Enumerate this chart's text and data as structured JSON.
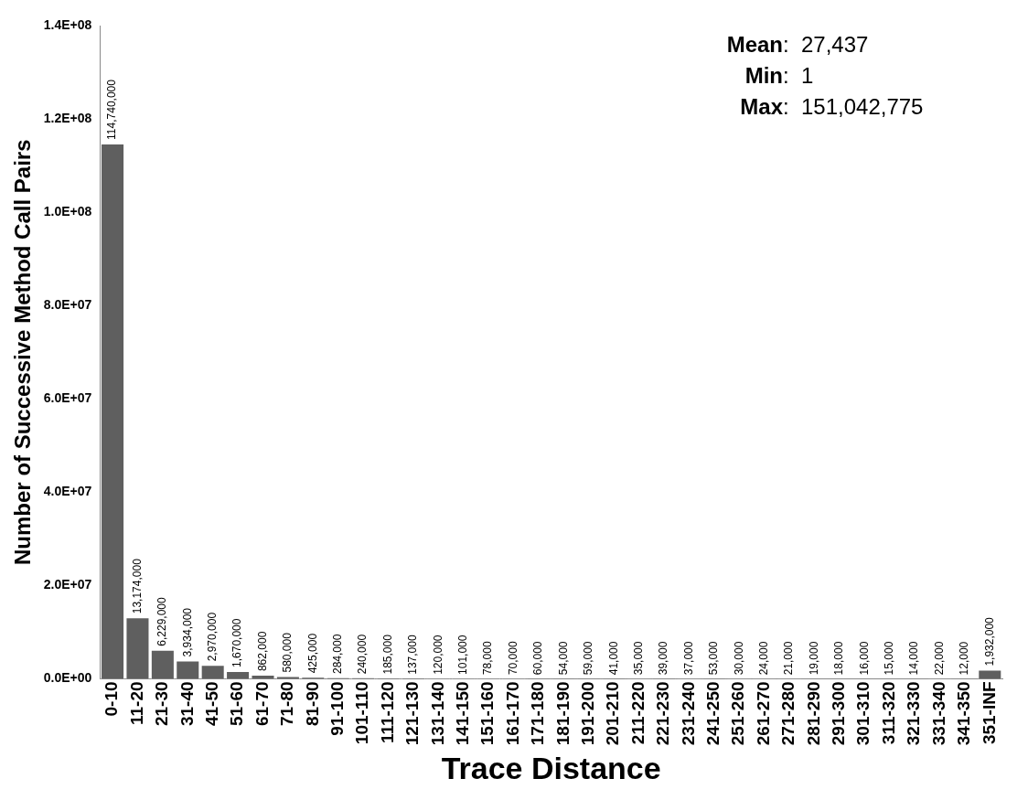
{
  "chart_data": {
    "type": "bar",
    "xlabel": "Trace Distance",
    "ylabel": "Number of Successive Method Call Pairs",
    "categories": [
      "0-10",
      "11-20",
      "21-30",
      "31-40",
      "41-50",
      "51-60",
      "61-70",
      "71-80",
      "81-90",
      "91-100",
      "101-110",
      "111-120",
      "121-130",
      "131-140",
      "141-150",
      "151-160",
      "161-170",
      "171-180",
      "181-190",
      "191-200",
      "201-210",
      "211-220",
      "221-230",
      "231-240",
      "241-250",
      "251-260",
      "261-270",
      "271-280",
      "281-290",
      "291-300",
      "301-310",
      "311-320",
      "321-330",
      "331-340",
      "341-350",
      "351-INF"
    ],
    "values": [
      114740000,
      13174000,
      6229000,
      3934000,
      2970000,
      1670000,
      862000,
      580000,
      425000,
      284000,
      240000,
      185000,
      137000,
      120000,
      101000,
      78000,
      70000,
      60000,
      54000,
      59000,
      41000,
      35000,
      39000,
      37000,
      53000,
      30000,
      24000,
      21000,
      19000,
      18000,
      16000,
      15000,
      14000,
      22000,
      12000,
      1932000
    ],
    "value_labels": [
      "114,740,000",
      "13,174,000",
      "6,229,000",
      "3,934,000",
      "2,970,000",
      "1,670,000",
      "862,000",
      "580,000",
      "425,000",
      "284,000",
      "240,000",
      "185,000",
      "137,000",
      "120,000",
      "101,000",
      "78,000",
      "70,000",
      "60,000",
      "54,000",
      "59,000",
      "41,000",
      "35,000",
      "39,000",
      "37,000",
      "53,000",
      "30,000",
      "24,000",
      "21,000",
      "19,000",
      "18,000",
      "16,000",
      "15,000",
      "14,000",
      "22,000",
      "12,000",
      "1,932,000"
    ],
    "color": "#5f5f5f",
    "ylim": [
      0,
      140000000
    ],
    "yticks": [
      {
        "value": 0,
        "label": "0.0E+00"
      },
      {
        "value": 20000000,
        "label": "2.0E+07"
      },
      {
        "value": 40000000,
        "label": "4.0E+07"
      },
      {
        "value": 60000000,
        "label": "6.0E+07"
      },
      {
        "value": 80000000,
        "label": "8.0E+07"
      },
      {
        "value": 100000000,
        "label": "1.0E+08"
      },
      {
        "value": 120000000,
        "label": "1.2E+08"
      },
      {
        "value": 140000000,
        "label": "1.4E+08"
      }
    ],
    "grid": false,
    "legend": false,
    "annotations": [
      "Mean: 27,437",
      "Min: 1",
      "Max: 151,042,775"
    ]
  }
}
